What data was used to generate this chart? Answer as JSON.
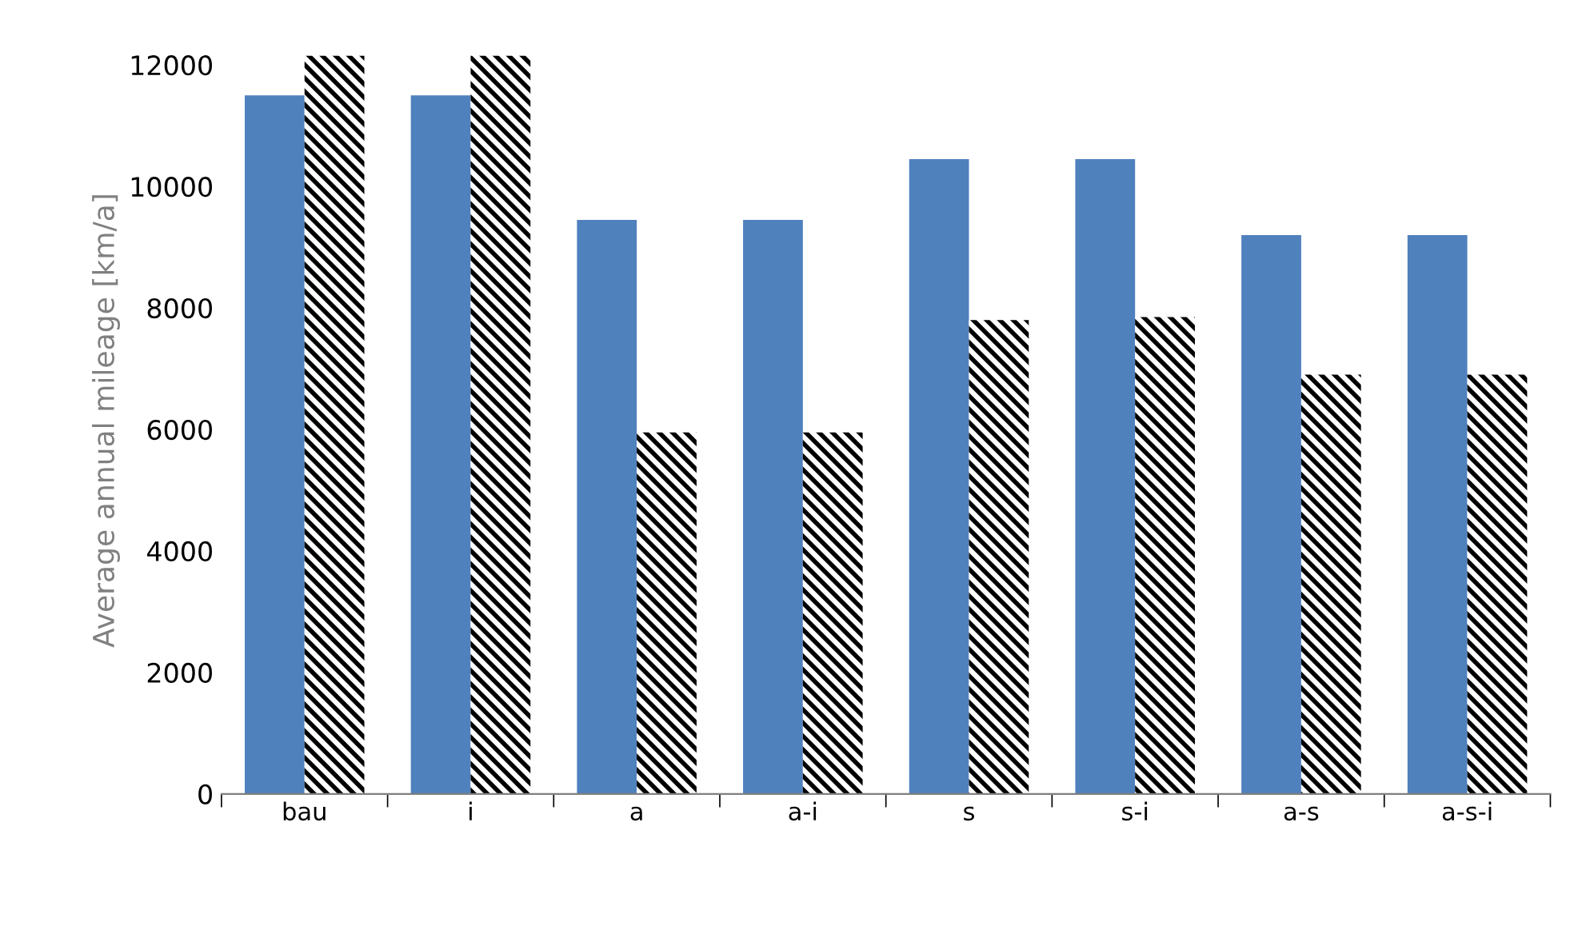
{
  "chart_data": {
    "type": "bar",
    "ylabel": "Average annual mileage [km/a]",
    "categories": [
      "bau",
      "i",
      "a",
      "a-i",
      "s",
      "s-i",
      "a-s",
      "a-s-i"
    ],
    "series": [
      {
        "color": "#4f81bd",
        "values": [
          11500,
          11500,
          9450,
          9450,
          10450,
          10450,
          9200,
          9200
        ]
      },
      {
        "color": "#000000",
        "values": [
          12150,
          12150,
          5950,
          5950,
          7800,
          7850,
          6900,
          6900
        ]
      }
    ],
    "ylim": [
      0,
      12300
    ],
    "yticks": [
      0,
      2000,
      4000,
      6000,
      8000,
      10000,
      12000
    ],
    "grid": false,
    "legend": false
  }
}
